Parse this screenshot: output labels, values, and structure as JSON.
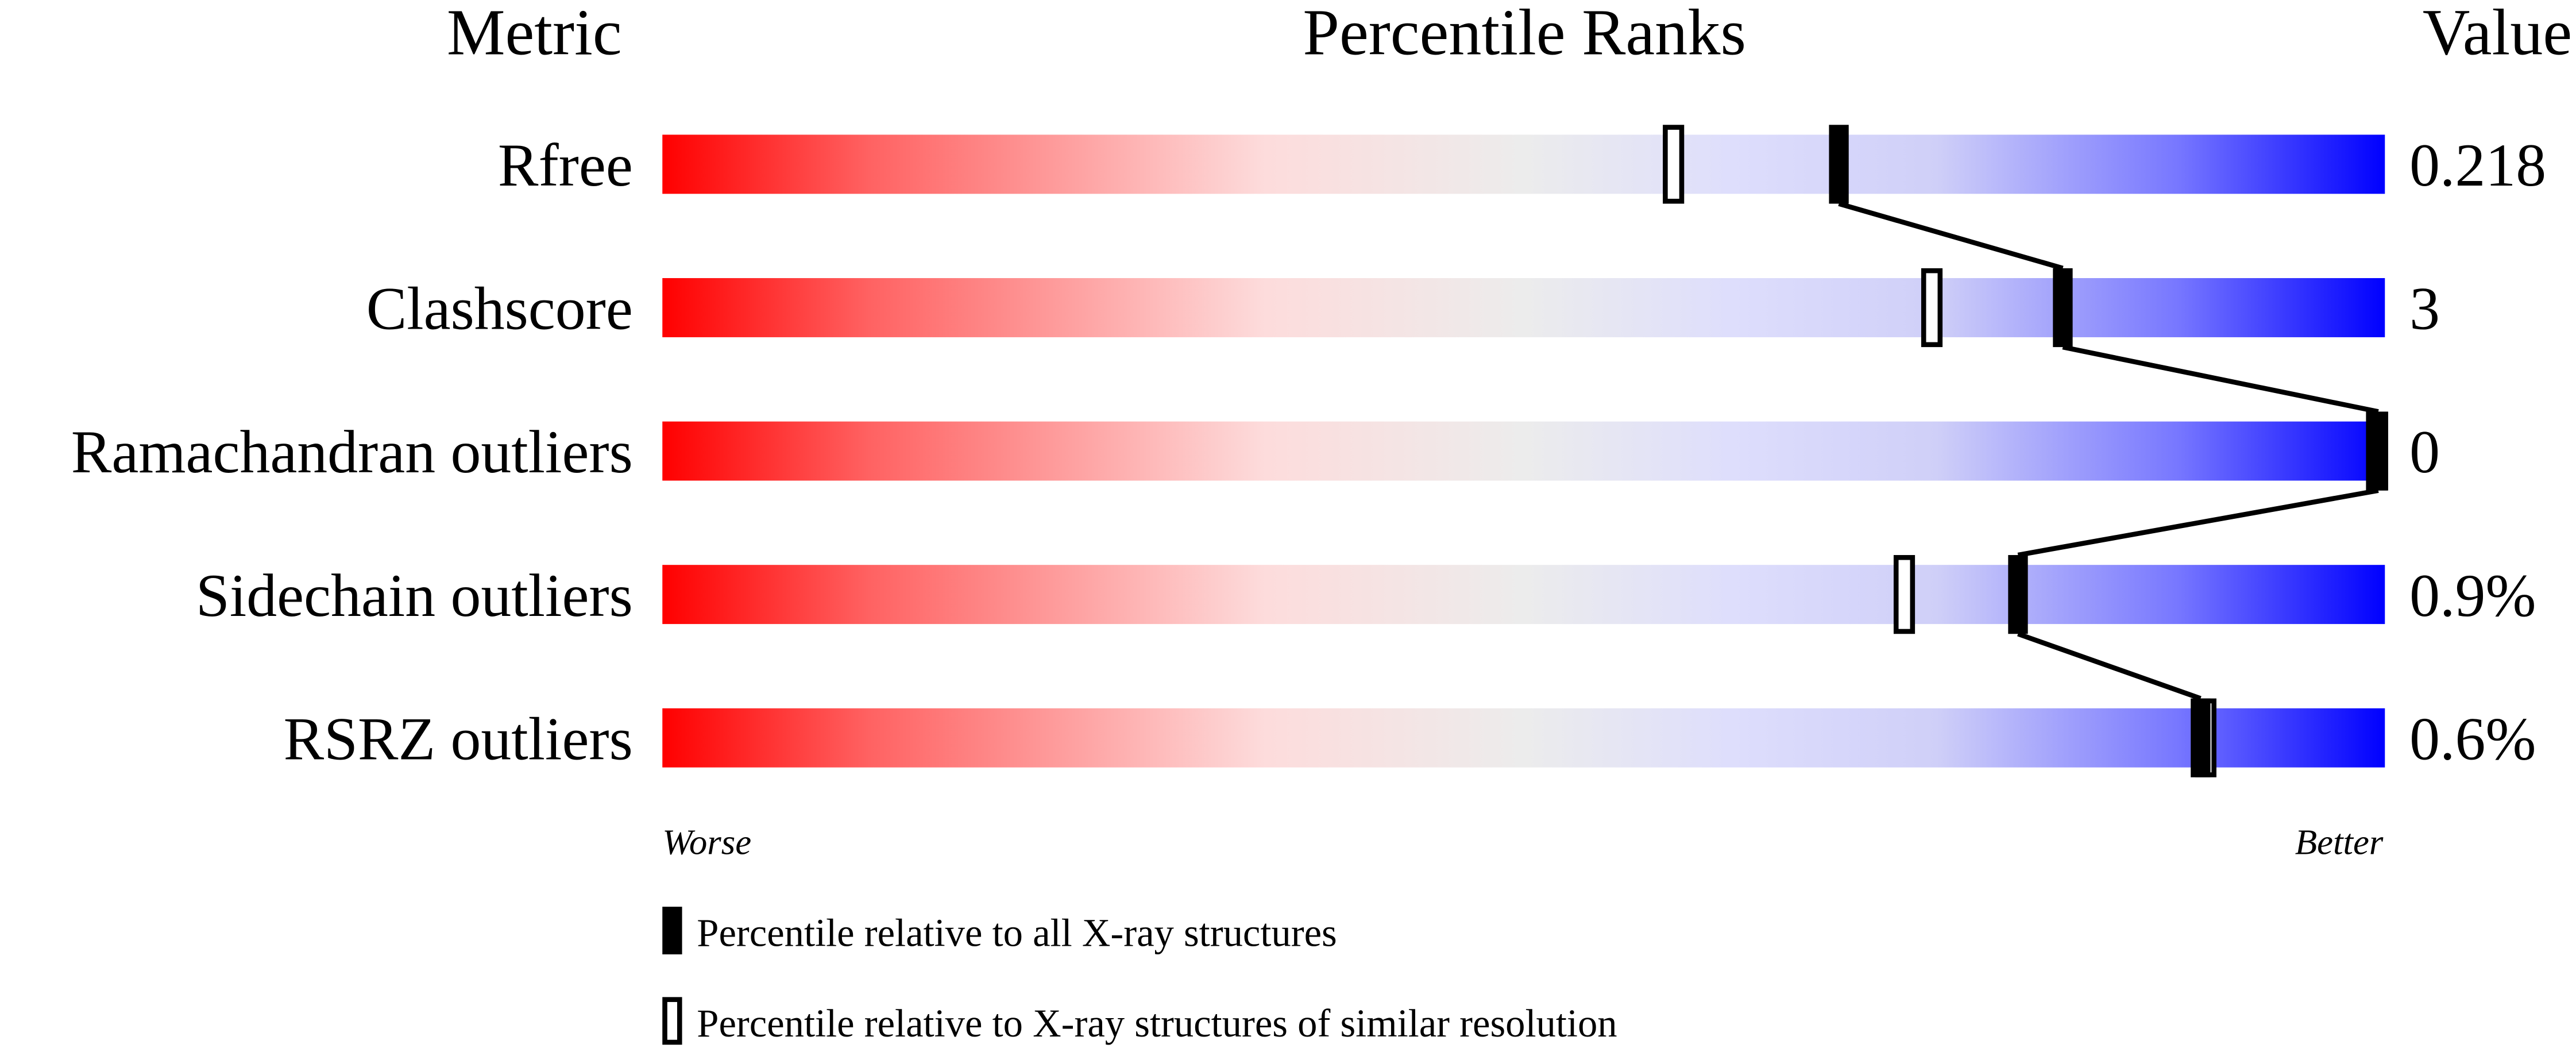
{
  "chart_data": {
    "type": "percentile-rank-strip",
    "headers": {
      "metric": "Metric",
      "percentile": "Percentile Ranks",
      "value": "Value"
    },
    "xlim": [
      0,
      100
    ],
    "colors": {
      "worse": "#ff0000",
      "middle": "#ececec",
      "better": "#0000ff",
      "marker": "#000000"
    },
    "metrics": [
      {
        "name": "Rfree",
        "value": "0.218",
        "percentile_all": 68.3,
        "percentile_similar": 58.7
      },
      {
        "name": "Clashscore",
        "value": "3",
        "percentile_all": 81.3,
        "percentile_similar": 73.7
      },
      {
        "name": "Ramachandran outliers",
        "value": "0",
        "percentile_all": 100,
        "percentile_similar": 100
      },
      {
        "name": "Sidechain outliers",
        "value": "0.9%",
        "percentile_all": 78.7,
        "percentile_similar": 72.1
      },
      {
        "name": "RSRZ outliers",
        "value": "0.6%",
        "percentile_all": 89.3,
        "percentile_similar": 89.6
      }
    ],
    "axis_ends": {
      "left": "Worse",
      "right": "Better"
    },
    "legend": [
      {
        "marker": "filled",
        "label": "Percentile relative to all X-ray structures"
      },
      {
        "marker": "open",
        "label": "Percentile relative to X-ray structures of similar resolution"
      }
    ]
  }
}
